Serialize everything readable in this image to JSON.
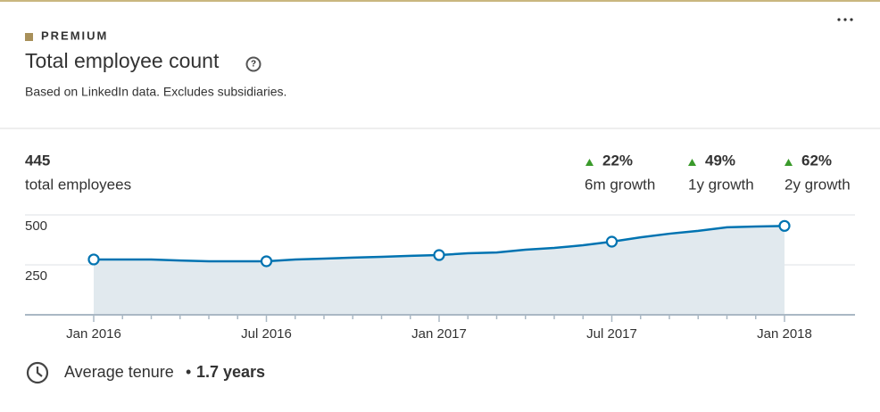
{
  "header": {
    "badge": "PREMIUM",
    "title": "Total employee count",
    "subtitle": "Based on LinkedIn data. Excludes subsidiaries."
  },
  "summary": {
    "total": "445",
    "total_label": "total employees",
    "stats": [
      {
        "value": "22%",
        "label": "6m growth"
      },
      {
        "value": "49%",
        "label": "1y growth"
      },
      {
        "value": "62%",
        "label": "2y growth"
      }
    ]
  },
  "chart_data": {
    "type": "area",
    "categories": [
      "Jan 2016",
      null,
      null,
      null,
      null,
      null,
      "Jul 2016",
      null,
      null,
      null,
      null,
      null,
      "Jan 2017",
      null,
      null,
      null,
      null,
      null,
      "Jul 2017",
      null,
      null,
      null,
      null,
      null,
      "Jan 2018"
    ],
    "series": [
      {
        "color": "#0073b1",
        "values": [
          277,
          277,
          277,
          272,
          268,
          268,
          268,
          277,
          281,
          286,
          290,
          295,
          299,
          308,
          312,
          326,
          335,
          348,
          366,
          388,
          406,
          420,
          438,
          442,
          445
        ]
      }
    ],
    "ylim": [
      0,
      500
    ],
    "yticks": [
      250,
      500
    ],
    "grid": true,
    "fill": "#e1e9ee"
  },
  "footer": {
    "label": "Average tenure",
    "separator": "•",
    "value": "1.7 years"
  }
}
